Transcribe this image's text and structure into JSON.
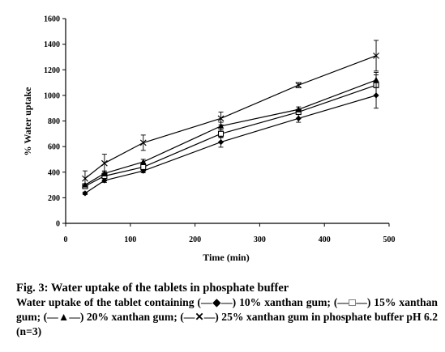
{
  "chart_data": {
    "type": "line",
    "title": "",
    "xlabel": "Time (min)",
    "ylabel": "% Water uptake",
    "xlim": [
      0,
      500
    ],
    "ylim": [
      0,
      1600
    ],
    "x_ticks": [
      0,
      100,
      200,
      300,
      400,
      500
    ],
    "y_ticks": [
      0,
      200,
      400,
      600,
      800,
      1000,
      1200,
      1400,
      1600
    ],
    "x_tick_labels": [
      "0",
      "100",
      "200",
      "300",
      "400",
      "500"
    ],
    "y_tick_labels": [
      "0",
      "200",
      "400",
      "600",
      "800",
      "1000",
      "1200",
      "1400",
      "1600"
    ],
    "grid": false,
    "legend": "none",
    "series": [
      {
        "marker": "diamond",
        "x": [
          30,
          60,
          120,
          240,
          360,
          480
        ],
        "y": [
          235,
          335,
          410,
          635,
          820,
          1000
        ],
        "err": [
          10,
          15,
          15,
          40,
          30,
          100
        ]
      },
      {
        "marker": "square",
        "x": [
          30,
          60,
          120,
          240,
          360,
          480
        ],
        "y": [
          290,
          370,
          440,
          700,
          870,
          1080
        ],
        "err": [
          10,
          20,
          20,
          30,
          20,
          80
        ]
      },
      {
        "marker": "triangle",
        "x": [
          30,
          60,
          120,
          240,
          360,
          480
        ],
        "y": [
          300,
          390,
          480,
          760,
          890,
          1120
        ],
        "err": [
          10,
          20,
          20,
          30,
          20,
          60
        ]
      },
      {
        "marker": "cross",
        "x": [
          30,
          60,
          120,
          240,
          360,
          480
        ],
        "y": [
          350,
          470,
          630,
          820,
          1080,
          1310
        ],
        "err": [
          60,
          70,
          60,
          50,
          20,
          120
        ]
      }
    ]
  },
  "caption": {
    "title": "Fig. 3: Water uptake of the tablets in phosphate buffer",
    "body": "Water uptake of the tablet containing (—◆—) 10% xanthan gum; (—□—) 15% xanthan gum; (—▲—) 20% xanthan gum; (—✕—) 25% xanthan gum in phosphate buffer pH 6.2 (n=3)"
  }
}
